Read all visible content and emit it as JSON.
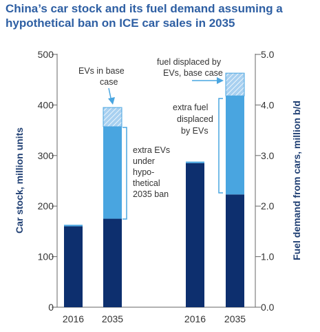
{
  "chart_data": {
    "type": "bar",
    "stacked": true,
    "title_lines": [
      "China’s car stock and its fuel demand assuming a",
      "hypothetical ban on ICE car sales in 2035"
    ],
    "panels": [
      {
        "axis": "left",
        "ylabel": "Car stock, million units",
        "ylim": [
          0,
          500
        ],
        "ticks": [
          "0",
          "100",
          "200",
          "300",
          "400",
          "500"
        ],
        "tick_values": [
          0,
          100,
          200,
          300,
          400,
          500
        ],
        "categories": [
          "2016",
          "2035"
        ],
        "series": [
          {
            "values": [
              160,
              175
            ],
            "color": "#0d2f6e"
          },
          {
            "values": [
              3,
              182
            ],
            "color": "#49a5e0"
          },
          {
            "values": [
              0,
              38
            ],
            "color": "#a8d0f0",
            "hatched": true
          }
        ]
      },
      {
        "axis": "right",
        "ylabel": "Fuel demand from cars, million b/d",
        "ylim": [
          0,
          5
        ],
        "ticks": [
          "0.0",
          "1.0",
          "2.0",
          "3.0",
          "4.0",
          "5.0"
        ],
        "tick_values": [
          0,
          1,
          2,
          3,
          4,
          5
        ],
        "categories": [
          "2016",
          "2035"
        ],
        "series": [
          {
            "values": [
              2.85,
              2.23
            ],
            "color": "#0d2f6e"
          },
          {
            "values": [
              0.03,
              1.95
            ],
            "color": "#49a5e0"
          },
          {
            "values": [
              0,
              0.45
            ],
            "color": "#a8d0f0",
            "hatched": true
          }
        ]
      }
    ],
    "annotations": {
      "evs_base_case": [
        "EVs in base",
        "case"
      ],
      "extra_evs": [
        "extra EVs",
        "under",
        "hypo-",
        "thetical",
        "2035 ban"
      ],
      "fuel_displaced_base": [
        "fuel displaced by",
        "EVs, base case"
      ],
      "extra_fuel_displaced": [
        "extra fuel",
        "displaced",
        "by EVs"
      ]
    }
  }
}
